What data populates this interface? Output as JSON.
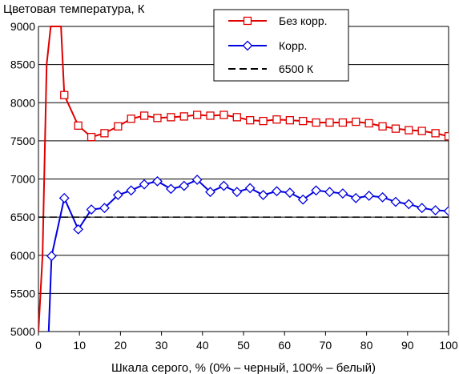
{
  "chart_data": {
    "type": "line",
    "title": "",
    "ylabel": "Цветовая температура, К",
    "xlabel": "Шкала серого, % (0% – черный, 100% – белый)",
    "xlim": [
      0,
      100
    ],
    "ylim": [
      5000,
      9000
    ],
    "x_ticks": [
      "0",
      "10",
      "20",
      "30",
      "40",
      "50",
      "60",
      "70",
      "80",
      "90",
      "100"
    ],
    "y_ticks": [
      "5000",
      "5500",
      "6000",
      "6500",
      "7000",
      "7500",
      "8000",
      "8500",
      "9000"
    ],
    "grid": "horizontal",
    "legend_position": "top-right",
    "series": [
      {
        "name": "Без корр.",
        "color": "#e00000",
        "marker": "square",
        "points": [
          [
            0,
            5000
          ],
          [
            1,
            6000
          ],
          [
            2,
            8500
          ],
          [
            3,
            9000
          ],
          [
            5.5,
            9000
          ],
          [
            6.3,
            8100
          ],
          [
            9.7,
            7700
          ],
          [
            12.9,
            7550
          ],
          [
            16.1,
            7600
          ],
          [
            19.4,
            7690
          ],
          [
            22.6,
            7790
          ],
          [
            25.8,
            7830
          ],
          [
            29,
            7800
          ],
          [
            32.3,
            7810
          ],
          [
            35.5,
            7820
          ],
          [
            38.7,
            7840
          ],
          [
            41.9,
            7830
          ],
          [
            45.2,
            7840
          ],
          [
            48.4,
            7810
          ],
          [
            51.6,
            7770
          ],
          [
            54.8,
            7760
          ],
          [
            58.1,
            7780
          ],
          [
            61.3,
            7770
          ],
          [
            64.5,
            7760
          ],
          [
            67.7,
            7740
          ],
          [
            71,
            7740
          ],
          [
            74.2,
            7740
          ],
          [
            77.4,
            7750
          ],
          [
            80.6,
            7730
          ],
          [
            83.9,
            7690
          ],
          [
            87.1,
            7660
          ],
          [
            90.3,
            7640
          ],
          [
            93.5,
            7630
          ],
          [
            96.8,
            7600
          ],
          [
            100,
            7560
          ]
        ],
        "marker_from_index": 5
      },
      {
        "name": "Корр.",
        "color": "#0000e0",
        "marker": "diamond",
        "points": [
          [
            2.5,
            5000
          ],
          [
            3.2,
            5990
          ],
          [
            6.3,
            6750
          ],
          [
            9.7,
            6340
          ],
          [
            12.9,
            6600
          ],
          [
            16.1,
            6620
          ],
          [
            19.4,
            6790
          ],
          [
            22.6,
            6850
          ],
          [
            25.8,
            6930
          ],
          [
            29,
            6970
          ],
          [
            32.3,
            6870
          ],
          [
            35.5,
            6910
          ],
          [
            38.7,
            6990
          ],
          [
            41.9,
            6830
          ],
          [
            45.2,
            6910
          ],
          [
            48.4,
            6830
          ],
          [
            51.6,
            6880
          ],
          [
            54.8,
            6790
          ],
          [
            58.1,
            6840
          ],
          [
            61.3,
            6820
          ],
          [
            64.5,
            6730
          ],
          [
            67.7,
            6850
          ],
          [
            71,
            6830
          ],
          [
            74.2,
            6810
          ],
          [
            77.4,
            6750
          ],
          [
            80.6,
            6780
          ],
          [
            83.9,
            6760
          ],
          [
            87.1,
            6700
          ],
          [
            90.3,
            6670
          ],
          [
            93.5,
            6620
          ],
          [
            96.8,
            6590
          ],
          [
            100,
            6580
          ]
        ],
        "marker_from_index": 1
      },
      {
        "name": "6500 К",
        "color": "#000000",
        "marker": "none",
        "dashed": true,
        "points": [
          [
            0,
            6500
          ],
          [
            100,
            6500
          ]
        ],
        "marker_from_index": 99
      }
    ]
  }
}
